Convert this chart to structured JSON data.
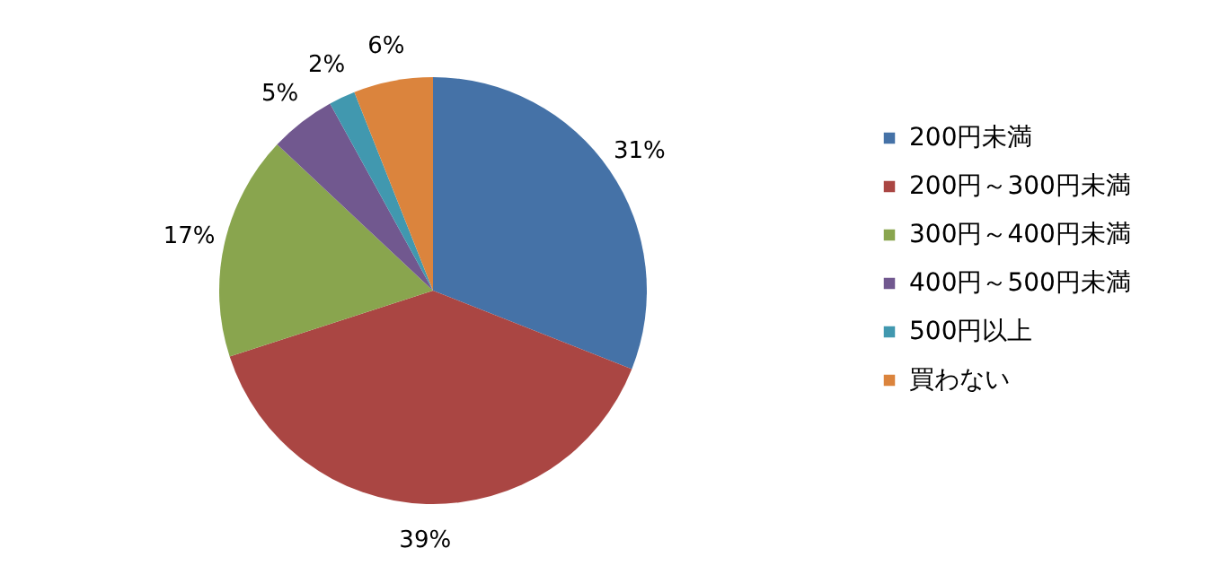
{
  "chart_data": {
    "type": "pie",
    "categories": [
      "200円未満",
      "200円～300円未満",
      "300円～400円未満",
      "400円～500円未満",
      "500円以上",
      "買わない"
    ],
    "values": [
      31,
      39,
      17,
      5,
      2,
      6
    ],
    "colors": [
      "#4572a7",
      "#aa4643",
      "#89a54e",
      "#71588f",
      "#4198af",
      "#db843d"
    ],
    "value_labels": [
      "31%",
      "39%",
      "17%",
      "5%",
      "2%",
      "6%"
    ],
    "legend": "right"
  }
}
